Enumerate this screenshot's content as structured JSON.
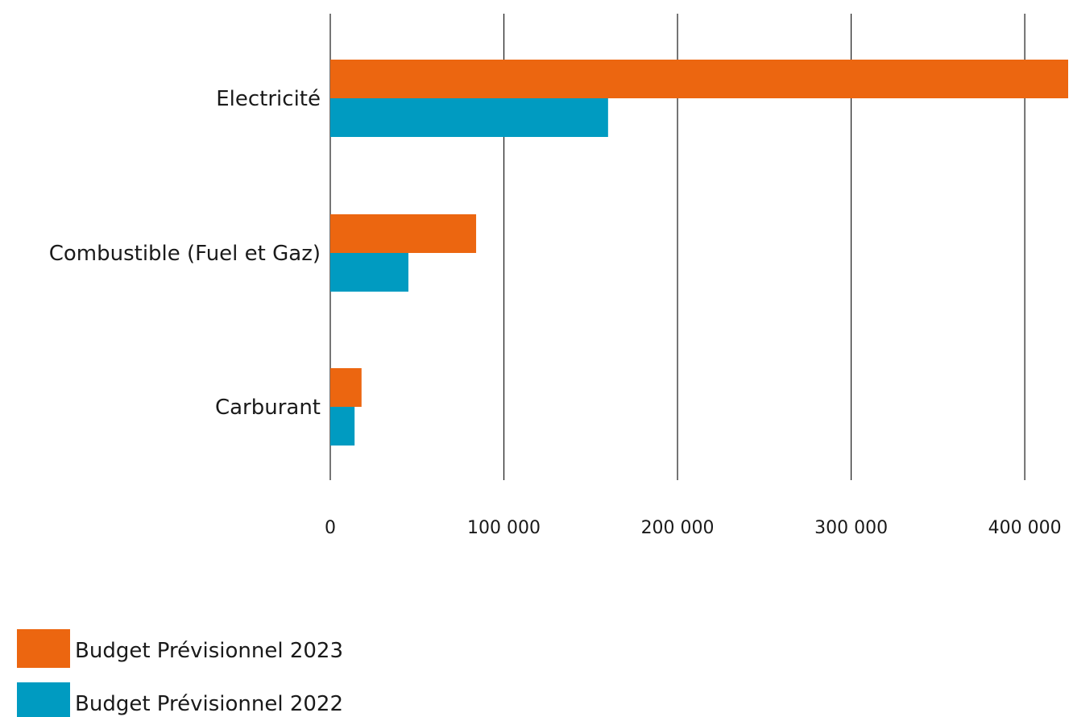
{
  "chart_data": {
    "type": "bar",
    "orientation": "horizontal",
    "categories": [
      "Electricité",
      "Combustible (Fuel et Gaz)",
      "Carburant"
    ],
    "series": [
      {
        "name": "Budget Prévisionnel 2023",
        "color": "#ec6610",
        "values": [
          425000,
          84000,
          18000
        ]
      },
      {
        "name": "Budget Prévisionnel 2022",
        "color": "#009bc1",
        "values": [
          160000,
          45000,
          14000
        ]
      }
    ],
    "x_ticks": [
      0,
      100000,
      200000,
      300000,
      400000
    ],
    "x_tick_labels": [
      "0",
      "100 000",
      "200 000",
      "300 000",
      "400 000"
    ],
    "xlim": [
      0,
      425000
    ],
    "grid": "vertical",
    "legend": "bottom-left"
  }
}
